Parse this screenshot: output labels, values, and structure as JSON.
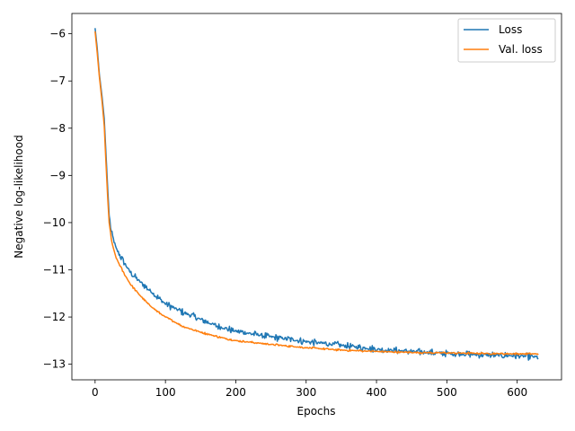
{
  "chart_data": {
    "type": "line",
    "title": "",
    "xlabel": "Epochs",
    "ylabel": "Negative log-likelihood",
    "xlim": [
      -33,
      663
    ],
    "ylim": [
      -13.33,
      -5.57
    ],
    "xticks": [
      0,
      100,
      200,
      300,
      400,
      500,
      600
    ],
    "yticks": [
      -6,
      -7,
      -8,
      -9,
      -10,
      -11,
      -12,
      -13
    ],
    "grid": false,
    "legend_position": "top-right",
    "series": [
      {
        "name": "Loss",
        "color": "#1f77b4",
        "noise": 0.05,
        "points": [
          [
            0,
            -5.88
          ],
          [
            3,
            -6.3
          ],
          [
            6,
            -6.85
          ],
          [
            10,
            -7.35
          ],
          [
            13,
            -7.8
          ],
          [
            15,
            -8.4
          ],
          [
            18,
            -9.3
          ],
          [
            20,
            -9.85
          ],
          [
            23,
            -10.2
          ],
          [
            26,
            -10.35
          ],
          [
            30,
            -10.55
          ],
          [
            40,
            -10.82
          ],
          [
            50,
            -11.05
          ],
          [
            60,
            -11.2
          ],
          [
            75,
            -11.4
          ],
          [
            90,
            -11.6
          ],
          [
            100,
            -11.72
          ],
          [
            125,
            -11.9
          ],
          [
            150,
            -12.05
          ],
          [
            175,
            -12.2
          ],
          [
            200,
            -12.3
          ],
          [
            250,
            -12.42
          ],
          [
            300,
            -12.52
          ],
          [
            350,
            -12.6
          ],
          [
            400,
            -12.68
          ],
          [
            450,
            -12.73
          ],
          [
            500,
            -12.77
          ],
          [
            550,
            -12.8
          ],
          [
            600,
            -12.82
          ],
          [
            630,
            -12.85
          ]
        ]
      },
      {
        "name": "Val. loss",
        "color": "#ff7f0e",
        "noise": 0.015,
        "points": [
          [
            0,
            -5.95
          ],
          [
            3,
            -6.4
          ],
          [
            6,
            -6.9
          ],
          [
            10,
            -7.45
          ],
          [
            13,
            -7.95
          ],
          [
            15,
            -8.6
          ],
          [
            18,
            -9.5
          ],
          [
            20,
            -10.0
          ],
          [
            23,
            -10.35
          ],
          [
            26,
            -10.55
          ],
          [
            30,
            -10.75
          ],
          [
            40,
            -11.05
          ],
          [
            50,
            -11.3
          ],
          [
            60,
            -11.48
          ],
          [
            75,
            -11.72
          ],
          [
            90,
            -11.9
          ],
          [
            100,
            -12.0
          ],
          [
            125,
            -12.2
          ],
          [
            150,
            -12.32
          ],
          [
            175,
            -12.42
          ],
          [
            200,
            -12.5
          ],
          [
            250,
            -12.58
          ],
          [
            300,
            -12.65
          ],
          [
            350,
            -12.7
          ],
          [
            400,
            -12.73
          ],
          [
            450,
            -12.75
          ],
          [
            500,
            -12.76
          ],
          [
            550,
            -12.77
          ],
          [
            600,
            -12.78
          ],
          [
            630,
            -12.78
          ]
        ]
      }
    ]
  }
}
